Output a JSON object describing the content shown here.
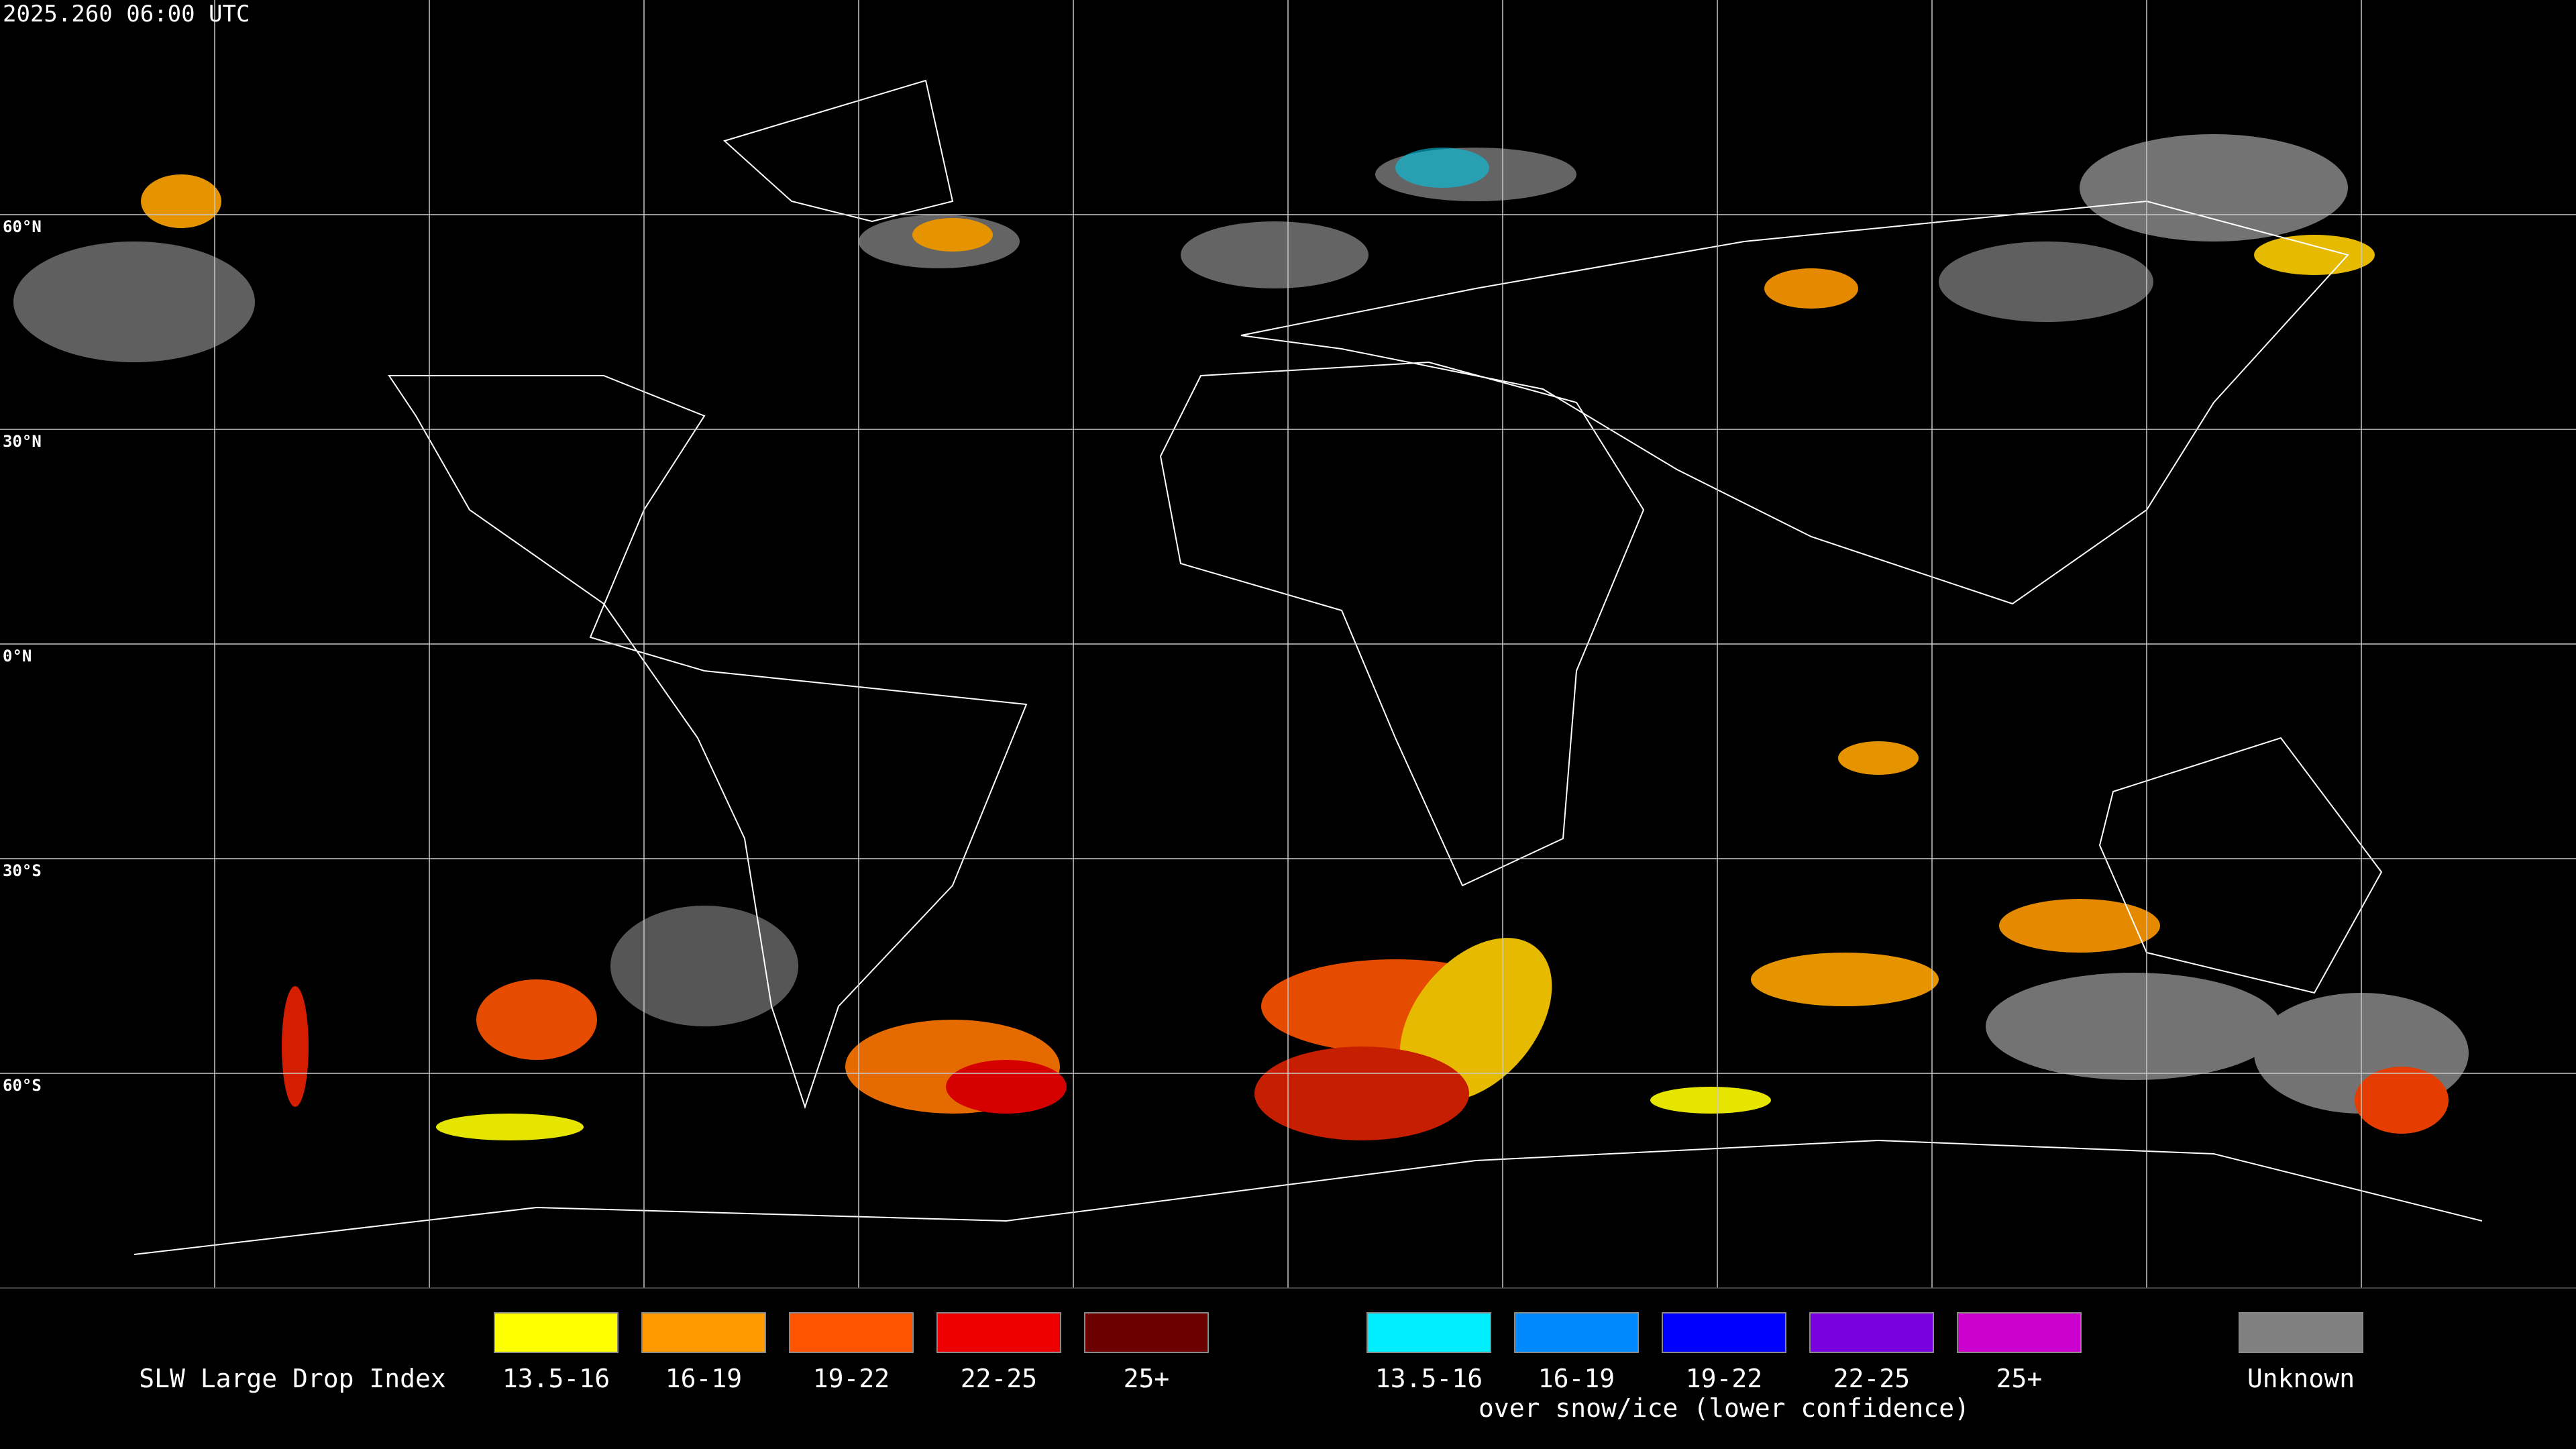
{
  "header": {
    "timestamp": "2025.260 06:00 UTC"
  },
  "map": {
    "latitude_labels": [
      "60°N",
      "30°N",
      "0°N",
      "30°S",
      "60°S"
    ]
  },
  "legend": {
    "title": "SLW Large Drop Index",
    "groups": [
      {
        "items": [
          {
            "label": "13.5-16",
            "color": "#ffff00"
          },
          {
            "label": "16-19",
            "color": "#ff9a00"
          },
          {
            "label": "19-22",
            "color": "#ff5500"
          },
          {
            "label": "22-25",
            "color": "#ee0000"
          },
          {
            "label": "25+",
            "color": "#6a0000"
          }
        ]
      },
      {
        "items": [
          {
            "label": "13.5-16",
            "color": "#00eeff"
          },
          {
            "label": "16-19",
            "color": "#0088ff"
          },
          {
            "label": "19-22",
            "color": "#0000ff"
          },
          {
            "label": "22-25",
            "color": "#7a00e0"
          },
          {
            "label": "25+",
            "color": "#cc00cc"
          }
        ]
      }
    ],
    "snow_note": "over snow/ice (lower confidence)",
    "unknown": {
      "label": "Unknown",
      "color": "#808080"
    }
  }
}
